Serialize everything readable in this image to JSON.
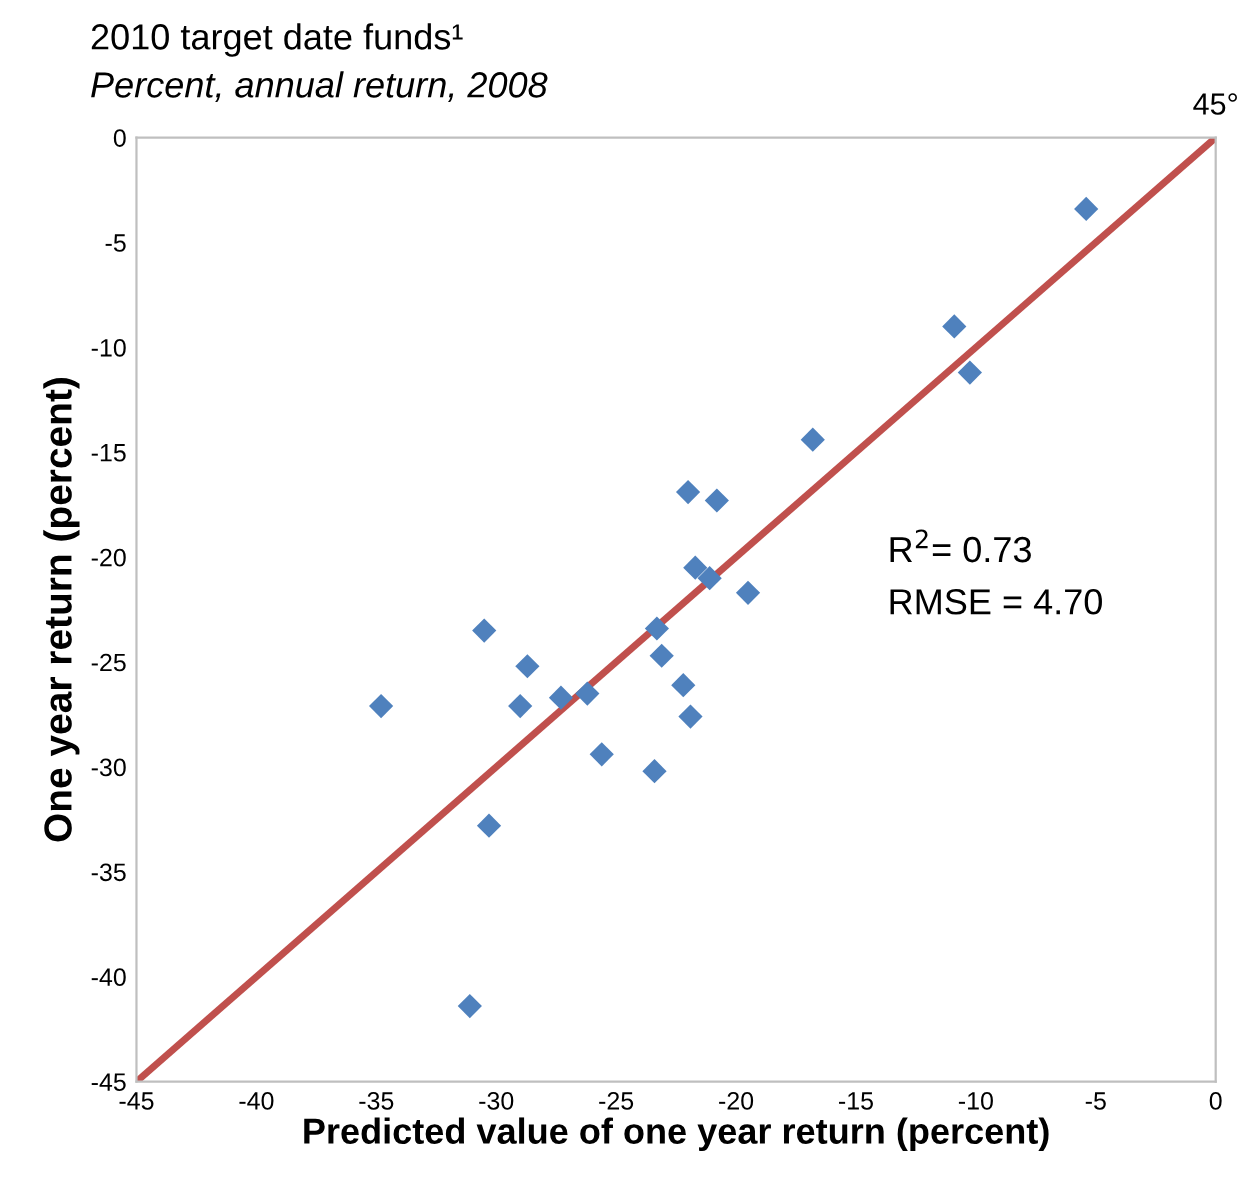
{
  "chart_data": {
    "type": "scatter",
    "title": "2010 target date funds¹",
    "subtitle": "Percent, annual return, 2008",
    "xlabel": "Predicted value of one year return (percent)",
    "ylabel": "One year return (percent)",
    "xlim": [
      -45,
      0
    ],
    "ylim": [
      -45,
      0
    ],
    "xticks": [
      -45,
      -40,
      -35,
      -30,
      -25,
      -20,
      -15,
      -10,
      -5,
      0
    ],
    "yticks": [
      -45,
      -40,
      -35,
      -30,
      -25,
      -20,
      -15,
      -10,
      -5,
      0
    ],
    "grid": false,
    "marker": "diamond",
    "series": [
      {
        "color": "#4f81bd",
        "x": [
          -5.4,
          -10.9,
          -10.25,
          -16.8,
          -22.0,
          -20.8,
          -21.7,
          -21.1,
          -19.5,
          -23.3,
          -30.5,
          -23.1,
          -28.7,
          -22.2,
          -34.8,
          -29.0,
          -27.3,
          -26.2,
          -21.9,
          -25.6,
          -23.4,
          -30.3,
          -31.1
        ],
        "values": [
          -3.4,
          -9.0,
          -11.2,
          -14.4,
          -16.9,
          -17.3,
          -20.5,
          -21.0,
          -21.7,
          -23.4,
          -23.5,
          -24.7,
          -25.2,
          -26.1,
          -27.1,
          -27.1,
          -26.7,
          -26.5,
          -27.6,
          -29.4,
          -30.2,
          -32.8,
          -41.4
        ]
      },
      {
        "type": "line",
        "color": "#c0504d",
        "x": [
          -45,
          0
        ],
        "values": [
          -45,
          0
        ],
        "line_style": "solid",
        "marker": "none"
      }
    ],
    "annotations": [
      {
        "text": "45°",
        "x": 0,
        "y": 0
      },
      "R$^{2}$= 0.73",
      "RMSE = 4.70"
    ]
  }
}
